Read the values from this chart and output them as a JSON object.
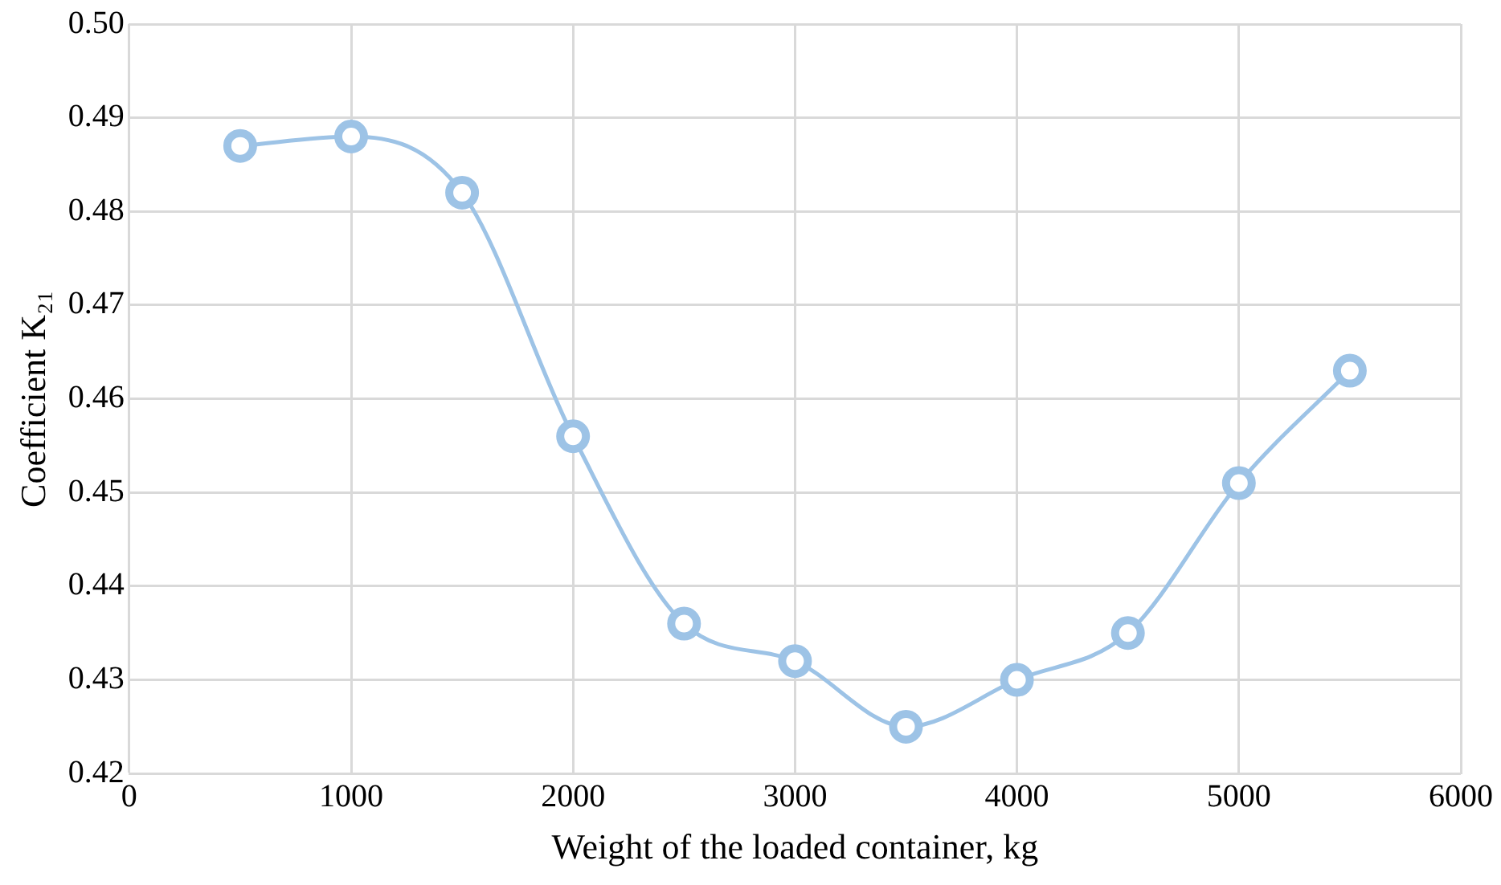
{
  "chart_data": {
    "type": "line",
    "xlabel": "Weight of the loaded container, kg",
    "ylabel": "Coefficient K₂₁",
    "x": [
      500,
      1000,
      1500,
      2000,
      2500,
      3000,
      3500,
      4000,
      4500,
      5000,
      5500
    ],
    "series": [
      {
        "color": "#9dc3e6",
        "values": [
          0.487,
          0.488,
          0.482,
          0.456,
          0.436,
          0.432,
          0.425,
          0.43,
          0.435,
          0.451,
          0.463
        ]
      }
    ],
    "xlim": [
      0,
      6000
    ],
    "xticks": [
      0,
      1000,
      2000,
      3000,
      4000,
      5000,
      6000
    ],
    "ylim": [
      0.42,
      0.5
    ],
    "yticks": [
      0.42,
      0.43,
      0.44,
      0.45,
      0.46,
      0.47,
      0.48,
      0.49,
      {
        "value": 0.5,
        "label": "0.50"
      }
    ],
    "grid": true,
    "legend": false,
    "marker": "circle",
    "line_style": "solid"
  }
}
